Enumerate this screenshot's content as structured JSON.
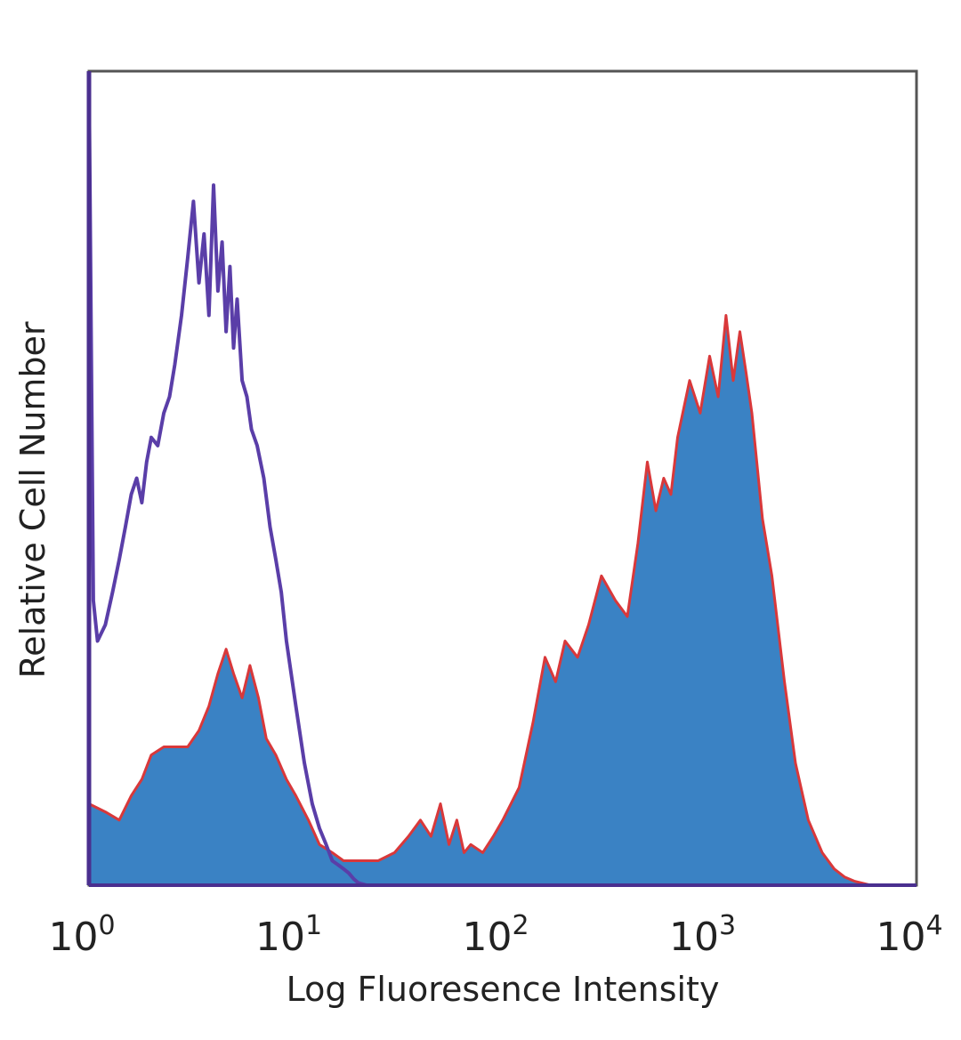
{
  "chart_data": {
    "type": "area",
    "title": "",
    "xlabel": "Log Fluoresence Intensity",
    "ylabel": "Relative Cell Number",
    "xscale": "log",
    "xlim": [
      1,
      10000
    ],
    "ylim": [
      0,
      100
    ],
    "grid": false,
    "legend": "none",
    "x_ticks": [
      {
        "value": 1,
        "base": "10",
        "exp": "0"
      },
      {
        "value": 10,
        "base": "10",
        "exp": "1"
      },
      {
        "value": 100,
        "base": "10",
        "exp": "2"
      },
      {
        "value": 1000,
        "base": "10",
        "exp": "3"
      },
      {
        "value": 10000,
        "base": "10",
        "exp": "4"
      }
    ],
    "series": [
      {
        "style": "filled",
        "color": "#3a82c4",
        "edge_color": "#d9383a",
        "x": [
          1.0,
          1.2,
          1.4,
          1.6,
          1.8,
          2.0,
          2.3,
          2.6,
          3.0,
          3.4,
          3.8,
          4.2,
          4.6,
          5.0,
          5.5,
          6.0,
          6.6,
          7.2,
          8.0,
          9.0,
          10.0,
          11.5,
          13,
          15,
          17,
          20,
          25,
          30,
          35,
          40,
          45,
          50,
          55,
          60,
          65,
          70,
          80,
          90,
          100,
          120,
          140,
          160,
          180,
          200,
          230,
          260,
          300,
          350,
          400,
          450,
          500,
          550,
          600,
          650,
          700,
          800,
          900,
          1000,
          1100,
          1200,
          1300,
          1400,
          1500,
          1600,
          1800,
          2000,
          2300,
          2600,
          3000,
          3500,
          4000,
          4500,
          5000,
          6000,
          7000,
          8000,
          9000,
          10000
        ],
        "values": [
          10,
          9,
          8,
          11,
          13,
          16,
          17,
          17,
          17,
          19,
          22,
          26,
          29,
          26,
          23,
          27,
          23,
          18,
          16,
          13,
          11,
          8,
          5,
          4,
          3,
          3,
          3,
          4,
          6,
          8,
          6,
          10,
          5,
          8,
          4,
          5,
          4,
          6,
          8,
          12,
          20,
          28,
          25,
          30,
          28,
          32,
          38,
          35,
          33,
          42,
          52,
          46,
          50,
          48,
          55,
          62,
          58,
          65,
          60,
          70,
          62,
          68,
          63,
          58,
          45,
          38,
          25,
          15,
          8,
          4,
          2,
          1,
          0.5,
          0,
          0,
          0,
          0,
          0
        ]
      },
      {
        "style": "outline",
        "color": "#5a3ea8",
        "x": [
          1.0,
          1.05,
          1.1,
          1.2,
          1.3,
          1.4,
          1.5,
          1.6,
          1.7,
          1.8,
          1.9,
          2.0,
          2.15,
          2.3,
          2.45,
          2.6,
          2.8,
          3.0,
          3.2,
          3.4,
          3.6,
          3.8,
          4.0,
          4.2,
          4.4,
          4.6,
          4.8,
          5.0,
          5.2,
          5.5,
          5.8,
          6.1,
          6.5,
          7.0,
          7.5,
          8.0,
          8.5,
          9.0,
          10,
          11,
          12,
          13,
          14,
          15,
          16,
          17,
          18,
          19,
          20,
          22
        ],
        "values": [
          100,
          35,
          30,
          32,
          36,
          40,
          44,
          48,
          50,
          47,
          52,
          55,
          54,
          58,
          60,
          64,
          70,
          77,
          84,
          74,
          80,
          70,
          86,
          73,
          79,
          68,
          76,
          66,
          72,
          62,
          60,
          56,
          54,
          50,
          44,
          40,
          36,
          30,
          22,
          15,
          10,
          7,
          5,
          3,
          2.5,
          2,
          1.5,
          0.8,
          0.3,
          0
        ]
      }
    ]
  }
}
